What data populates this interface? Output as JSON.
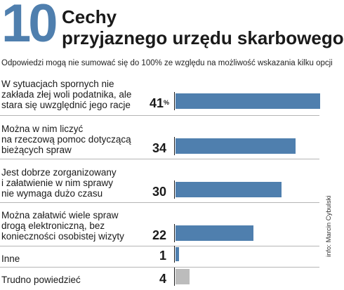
{
  "header": {
    "number": "10",
    "title_line1": "Cechy",
    "title_line2": "przyjaznego urzędu skarbowego",
    "subtitle": "Odpowiedzi mogą nie sumować się do 100% ze względu na możliwość wskazania kilku opcji"
  },
  "credit": "info: Marcin Cybulski",
  "colors": {
    "accent": "#4f7fae",
    "bar": "#4f7fae",
    "bar_other": "#bcbcbc"
  },
  "chart_data": {
    "type": "bar",
    "orientation": "horizontal",
    "unit": "%",
    "xlim": [
      0,
      41
    ],
    "categories": [
      "W sytuacjach spornych nie zakłada złej woli podatnika, ale stara się uwzględnić jego racje",
      "Można w nim liczyć na rzeczową pomoc dotyczącą bieżących spraw",
      "Jest dobrze zorganizowany i załatwienie w nim sprawy nie wymaga dużo czasu",
      "Można załatwić wiele spraw drogą elektroniczną, bez konieczności osobistej wizyty",
      "Inne",
      "Trudno powiedzieć"
    ],
    "label_lines": [
      [
        "W sytuacjach spornych nie",
        "zakłada złej woli podatnika, ale",
        "stara się uwzględnić jego racje"
      ],
      [
        "Można w nim liczyć",
        "na rzeczową pomoc dotyczącą",
        "bieżących spraw"
      ],
      [
        "Jest dobrze zorganizowany",
        "i załatwienie w nim sprawy",
        "nie wymaga dużo czasu"
      ],
      [
        "Można załatwić wiele spraw",
        "drogą elektroniczną, bez",
        "konieczności osobistej wizyty"
      ],
      [
        "Inne"
      ],
      [
        "Trudno powiedzieć"
      ]
    ],
    "values": [
      41,
      34,
      30,
      22,
      1,
      4
    ],
    "value_labels": [
      "41",
      "34",
      "30",
      "22",
      "1",
      "4"
    ],
    "first_value_suffix": "%",
    "bar_colors": [
      "#4f7fae",
      "#4f7fae",
      "#4f7fae",
      "#4f7fae",
      "#4f7fae",
      "#bcbcbc"
    ]
  }
}
